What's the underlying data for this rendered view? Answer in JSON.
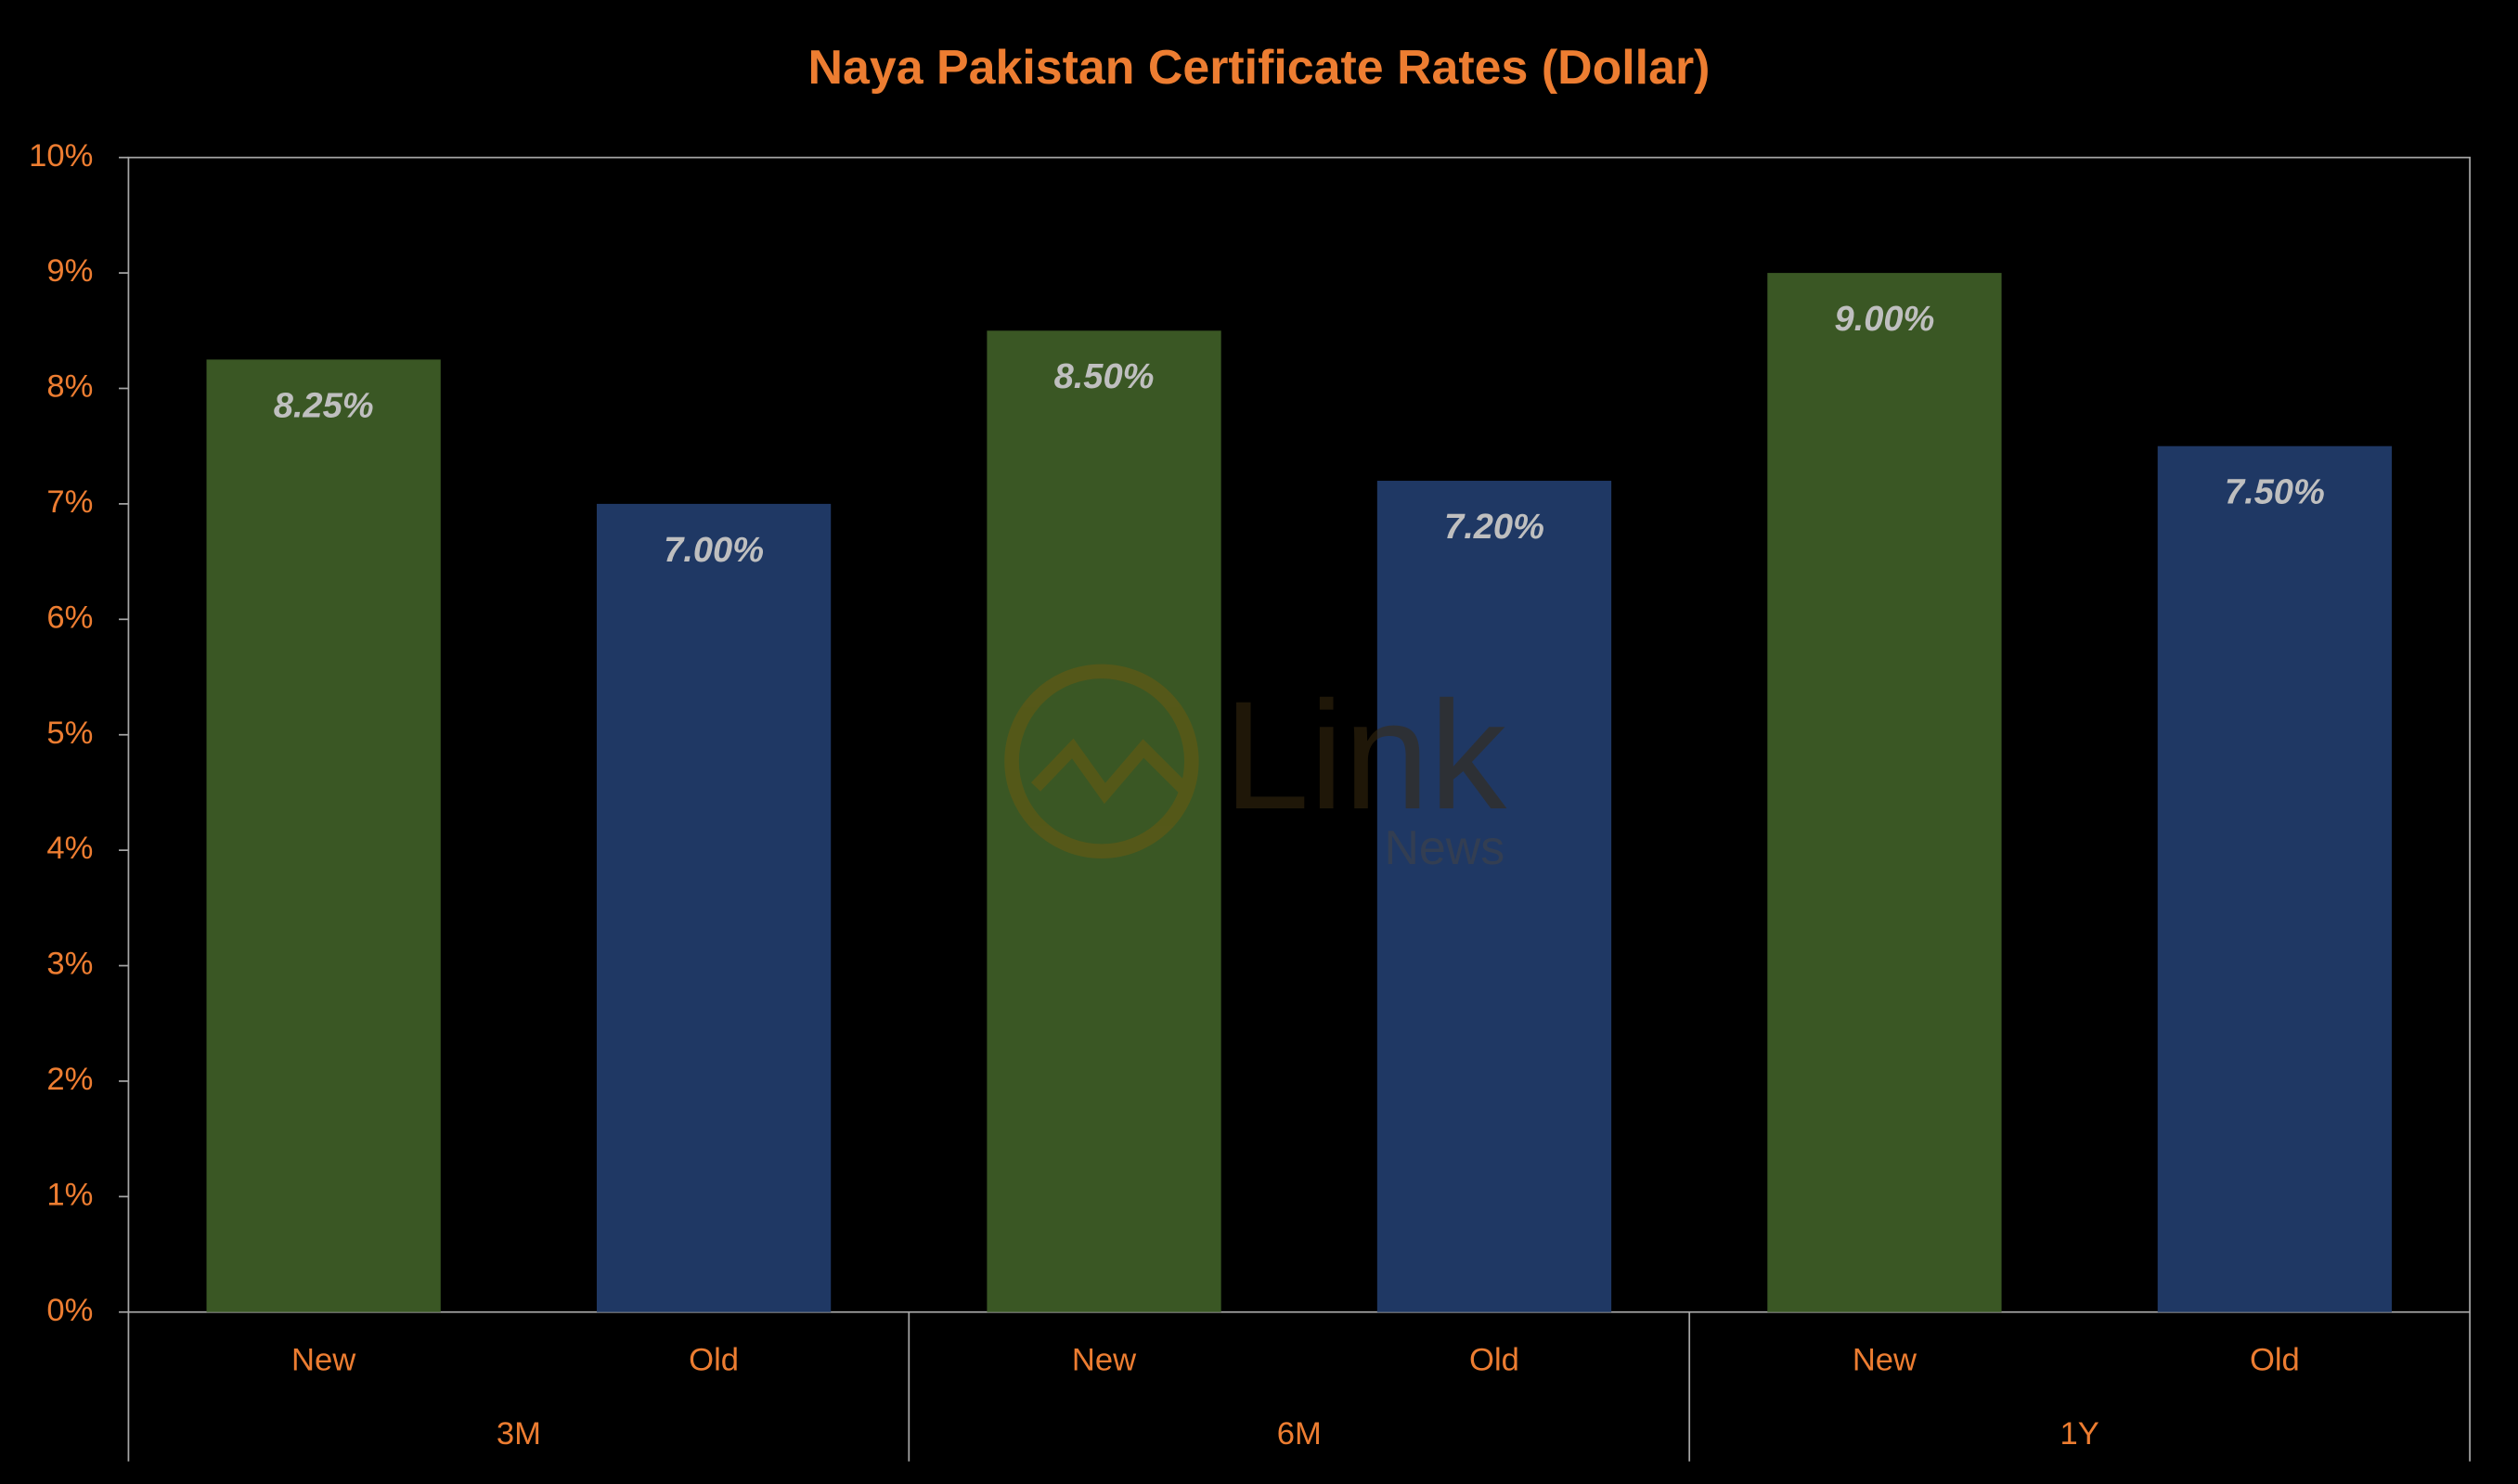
{
  "chart_data": {
    "type": "bar",
    "title": "Naya Pakistan Certificate Rates (Dollar)",
    "categories": [
      "New",
      "Old",
      "New",
      "Old",
      "New",
      "Old"
    ],
    "groups": [
      "3M",
      "6M",
      "1Y"
    ],
    "values": [
      8.25,
      7.0,
      8.5,
      7.2,
      9.0,
      7.5
    ],
    "value_labels": [
      "8.25%",
      "7.00%",
      "8.50%",
      "7.20%",
      "9.00%",
      "7.50%"
    ],
    "colors": [
      "#3a5724",
      "#1f3864",
      "#3a5724",
      "#1f3864",
      "#3a5724",
      "#1f3864"
    ],
    "ylim": [
      0,
      10
    ],
    "yticks": [
      {
        "value": 0,
        "label": "0%"
      },
      {
        "value": 1,
        "label": "1%"
      },
      {
        "value": 2,
        "label": "2%"
      },
      {
        "value": 3,
        "label": "3%"
      },
      {
        "value": 4,
        "label": "4%"
      },
      {
        "value": 5,
        "label": "5%"
      },
      {
        "value": 6,
        "label": "6%"
      },
      {
        "value": 7,
        "label": "7%"
      },
      {
        "value": 8,
        "label": "8%"
      },
      {
        "value": 9,
        "label": "9%"
      },
      {
        "value": 10,
        "label": "10%"
      }
    ],
    "grid": false,
    "watermark": {
      "text": "Link",
      "subtext": "News"
    }
  }
}
